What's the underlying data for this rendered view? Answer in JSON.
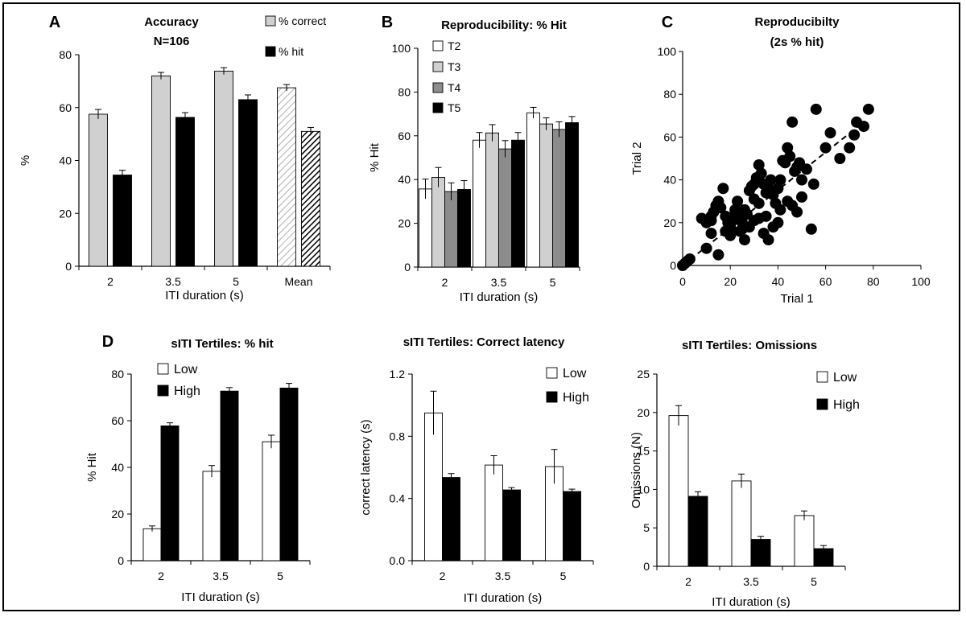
{
  "chart_data": [
    {
      "id": "A",
      "type": "bar",
      "letter": "A",
      "title": [
        "Accuracy",
        "N=106"
      ],
      "xlabel": "ITI duration (s)",
      "ylabel": "%",
      "ylim": [
        0,
        80
      ],
      "yticks": [
        0,
        20,
        40,
        60,
        80
      ],
      "categories": [
        "2",
        "3.5",
        "5",
        "Mean"
      ],
      "series": [
        {
          "name": "% correct",
          "color": "#d0d0d0",
          "values": [
            57.5,
            72,
            73.8,
            67.5
          ],
          "errors": [
            1.8,
            1.3,
            1.3,
            1.2
          ]
        },
        {
          "name": "% hit",
          "color": "#000000",
          "values": [
            34.5,
            56.3,
            63,
            51
          ],
          "errors": [
            1.8,
            1.8,
            1.8,
            1.5
          ]
        }
      ],
      "mean_hatched": true
    },
    {
      "id": "B",
      "type": "bar",
      "letter": "B",
      "title": [
        "Reproducibility: % Hit"
      ],
      "xlabel": "ITI duration (s)",
      "ylabel": "% Hit",
      "ylim": [
        0,
        100
      ],
      "yticks": [
        0,
        20,
        40,
        60,
        80,
        100
      ],
      "categories": [
        "2",
        "3.5",
        "5"
      ],
      "series": [
        {
          "name": "T2",
          "color": "#ffffff",
          "values": [
            35.7,
            58,
            70.5
          ],
          "errors": [
            4.5,
            3.5,
            2.5
          ]
        },
        {
          "name": "T3",
          "color": "#d0d0d0",
          "values": [
            41,
            61.3,
            65.4
          ],
          "errors": [
            4.5,
            3.8,
            2.8
          ]
        },
        {
          "name": "T4",
          "color": "#8c8c8c",
          "values": [
            34.5,
            54,
            62.9
          ],
          "errors": [
            4.0,
            3.8,
            3.5
          ]
        },
        {
          "name": "T5",
          "color": "#000000",
          "values": [
            35.5,
            58,
            66
          ],
          "errors": [
            4.0,
            3.5,
            2.8
          ]
        }
      ]
    },
    {
      "id": "C",
      "type": "scatter",
      "letter": "C",
      "title": [
        "Reproducibilty",
        "(2s % hit)"
      ],
      "xlabel": "Trial 1",
      "ylabel": "Trial 2",
      "xlim": [
        0,
        100
      ],
      "ylim": [
        0,
        100
      ],
      "xticks": [
        0,
        20,
        40,
        60,
        80,
        100
      ],
      "yticks": [
        0,
        20,
        40,
        60,
        80,
        100
      ],
      "points": [
        [
          0,
          0
        ],
        [
          1,
          1
        ],
        [
          2,
          2
        ],
        [
          3,
          3
        ],
        [
          10,
          20
        ],
        [
          12,
          21
        ],
        [
          13,
          25
        ],
        [
          14,
          28
        ],
        [
          15,
          30
        ],
        [
          16,
          27
        ],
        [
          17,
          36
        ],
        [
          18,
          23
        ],
        [
          19,
          20
        ],
        [
          20,
          18
        ],
        [
          21,
          21
        ],
        [
          22,
          24
        ],
        [
          23,
          30
        ],
        [
          24,
          22
        ],
        [
          25,
          20
        ],
        [
          26,
          26
        ],
        [
          27,
          24
        ],
        [
          28,
          35
        ],
        [
          29,
          37
        ],
        [
          30,
          38
        ],
        [
          31,
          41
        ],
        [
          32,
          47
        ],
        [
          33,
          43
        ],
        [
          34,
          38
        ],
        [
          35,
          34
        ],
        [
          36,
          36
        ],
        [
          37,
          40
        ],
        [
          38,
          33
        ],
        [
          39,
          29
        ],
        [
          40,
          36
        ],
        [
          41,
          40
        ],
        [
          42,
          49
        ],
        [
          43,
          48
        ],
        [
          44,
          55
        ],
        [
          45,
          51
        ],
        [
          46,
          67
        ],
        [
          47,
          44
        ],
        [
          48,
          46
        ],
        [
          49,
          48
        ],
        [
          50,
          40
        ],
        [
          52,
          45
        ],
        [
          55,
          38
        ],
        [
          56,
          73
        ],
        [
          60,
          55
        ],
        [
          62,
          62
        ],
        [
          66,
          50
        ],
        [
          70,
          55
        ],
        [
          72,
          61
        ],
        [
          73,
          67
        ],
        [
          76,
          65
        ],
        [
          78,
          73
        ],
        [
          10,
          8
        ],
        [
          12,
          15
        ],
        [
          15,
          5
        ],
        [
          18,
          16
        ],
        [
          20,
          14
        ],
        [
          22,
          26
        ],
        [
          24,
          16
        ],
        [
          26,
          12
        ],
        [
          28,
          18
        ],
        [
          30,
          21
        ],
        [
          32,
          22
        ],
        [
          34,
          15
        ],
        [
          36,
          12
        ],
        [
          38,
          18
        ],
        [
          40,
          20
        ],
        [
          44,
          30
        ],
        [
          46,
          28
        ],
        [
          48,
          25
        ],
        [
          50,
          32
        ],
        [
          54,
          17
        ],
        [
          35,
          23
        ],
        [
          30,
          31
        ],
        [
          32,
          29
        ],
        [
          25,
          17
        ],
        [
          41,
          26
        ],
        [
          8,
          22
        ],
        [
          12,
          23
        ]
      ],
      "trendline": [
        [
          0,
          0
        ],
        [
          76,
          67
        ]
      ]
    },
    {
      "id": "D1",
      "type": "bar",
      "letter": "D",
      "title": [
        "sITI Tertiles: % hit"
      ],
      "xlabel": "ITI duration (s)",
      "ylabel": "% Hit",
      "ylim": [
        0,
        80
      ],
      "yticks": [
        0,
        20,
        40,
        60,
        80
      ],
      "categories": [
        "2",
        "3.5",
        "5"
      ],
      "series": [
        {
          "name": "Low",
          "color": "#ffffff",
          "values": [
            13.7,
            38.3,
            51
          ],
          "errors": [
            1.2,
            2.5,
            2.8
          ]
        },
        {
          "name": "High",
          "color": "#000000",
          "values": [
            57.8,
            72.7,
            74
          ],
          "errors": [
            1.3,
            1.5,
            2.0
          ]
        }
      ]
    },
    {
      "id": "D2",
      "type": "bar",
      "letter": "",
      "title": [
        "sITI Tertiles: Correct latency"
      ],
      "xlabel": "ITI duration (s)",
      "ylabel": "correct latency (s)",
      "ylim": [
        0,
        1.2
      ],
      "yticks": [
        "0.0",
        "0.4",
        "0.8",
        "1.2"
      ],
      "categories": [
        "2",
        "3.5",
        "5"
      ],
      "series": [
        {
          "name": "Low",
          "color": "#ffffff",
          "values": [
            0.95,
            0.615,
            0.605
          ],
          "errors": [
            0.14,
            0.06,
            0.11
          ]
        },
        {
          "name": "High",
          "color": "#000000",
          "values": [
            0.535,
            0.455,
            0.445
          ],
          "errors": [
            0.025,
            0.015,
            0.015
          ]
        }
      ]
    },
    {
      "id": "D3",
      "type": "bar",
      "letter": "",
      "title": [
        "sITI Tertiles: Omissions"
      ],
      "xlabel": "ITI duration (s)",
      "ylabel": "Omissions (N)",
      "ylim": [
        0,
        25
      ],
      "yticks": [
        0,
        5,
        10,
        15,
        20,
        25
      ],
      "categories": [
        "2",
        "3.5",
        "5"
      ],
      "series": [
        {
          "name": "Low",
          "color": "#ffffff",
          "values": [
            19.6,
            11.1,
            6.6
          ],
          "errors": [
            1.3,
            0.9,
            0.6
          ]
        },
        {
          "name": "High",
          "color": "#000000",
          "values": [
            9.1,
            3.5,
            2.3
          ],
          "errors": [
            0.6,
            0.4,
            0.4
          ]
        }
      ]
    }
  ]
}
